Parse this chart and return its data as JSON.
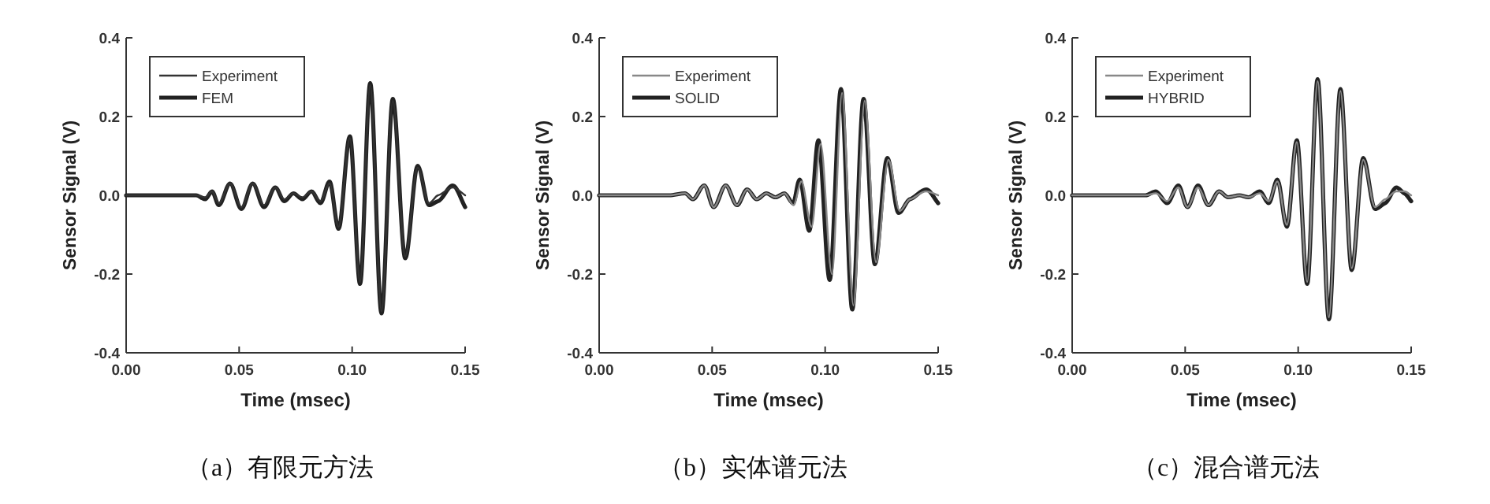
{
  "chart_data": [
    {
      "type": "line",
      "xlabel": "Time (msec)",
      "ylabel": "Sensor Signal (V)",
      "xlim": [
        0,
        0.15
      ],
      "ylim": [
        -0.4,
        0.4
      ],
      "xticks": [
        {
          "value": 0,
          "label": "0.00"
        },
        {
          "value": 0.05,
          "label": "0.05"
        },
        {
          "value": 0.1,
          "label": "0.10"
        },
        {
          "value": 0.15,
          "label": "0.15"
        }
      ],
      "yticks": [
        {
          "value": -0.4,
          "label": "-0.4"
        },
        {
          "value": -0.2,
          "label": "-0.2"
        },
        {
          "value": 0,
          "label": "0.0"
        },
        {
          "value": 0.2,
          "label": "0.2"
        },
        {
          "value": 0.4,
          "label": "0.4"
        }
      ],
      "legend": "top left",
      "annotations": [
        "（a）有限元方法"
      ],
      "series": [
        {
          "name": "Experiment",
          "color": "#333333",
          "x": [
            0,
            0.031,
            0.035,
            0.038,
            0.041,
            0.046,
            0.051,
            0.056,
            0.061,
            0.066,
            0.07,
            0.074,
            0.078,
            0.082,
            0.086,
            0.09,
            0.094,
            0.099,
            0.1035,
            0.108,
            0.113,
            0.118,
            0.1235,
            0.129,
            0.134,
            0.138,
            0.1445,
            0.15
          ],
          "values": [
            0,
            0,
            -0.005,
            0.01,
            -0.02,
            0.03,
            -0.03,
            0.03,
            -0.025,
            0.02,
            -0.01,
            0.005,
            -0.005,
            0.01,
            -0.015,
            0.03,
            -0.08,
            0.145,
            -0.22,
            0.28,
            -0.295,
            0.24,
            -0.155,
            0.07,
            -0.02,
            0.0,
            0.02,
            0.0
          ]
        },
        {
          "name": "FEM",
          "color": "#222222",
          "x": [
            0,
            0.031,
            0.035,
            0.038,
            0.041,
            0.046,
            0.051,
            0.056,
            0.061,
            0.066,
            0.07,
            0.074,
            0.078,
            0.082,
            0.086,
            0.09,
            0.094,
            0.099,
            0.1035,
            0.108,
            0.113,
            0.118,
            0.1235,
            0.129,
            0.134,
            0.138,
            0.1445,
            0.15
          ],
          "values": [
            0,
            0,
            -0.01,
            0.01,
            -0.025,
            0.03,
            -0.035,
            0.03,
            -0.03,
            0.02,
            -0.015,
            0.005,
            -0.01,
            0.01,
            -0.02,
            0.035,
            -0.085,
            0.15,
            -0.225,
            0.285,
            -0.3,
            0.245,
            -0.16,
            0.075,
            -0.025,
            -0.015,
            0.025,
            -0.03
          ]
        }
      ]
    },
    {
      "type": "line",
      "xlabel": "Time (msec)",
      "ylabel": "Sensor Signal (V)",
      "xlim": [
        0,
        0.15
      ],
      "ylim": [
        -0.4,
        0.4
      ],
      "xticks": [
        {
          "value": 0,
          "label": "0.00"
        },
        {
          "value": 0.05,
          "label": "0.05"
        },
        {
          "value": 0.1,
          "label": "0.10"
        },
        {
          "value": 0.15,
          "label": "0.15"
        }
      ],
      "yticks": [
        {
          "value": -0.4,
          "label": "-0.4"
        },
        {
          "value": -0.2,
          "label": "-0.2"
        },
        {
          "value": 0,
          "label": "0.0"
        },
        {
          "value": 0.2,
          "label": "0.2"
        },
        {
          "value": 0.4,
          "label": "0.4"
        }
      ],
      "legend": "top left",
      "annotations": [
        "（b）实体谱元法"
      ],
      "series": [
        {
          "name": "Experiment",
          "color": "#888888",
          "x": [
            0,
            0.031,
            0.038,
            0.0415,
            0.0465,
            0.0507,
            0.056,
            0.061,
            0.0655,
            0.0697,
            0.074,
            0.078,
            0.082,
            0.086,
            0.0895,
            0.094,
            0.098,
            0.103,
            0.1075,
            0.1125,
            0.1175,
            0.1225,
            0.128,
            0.133,
            0.1375,
            0.1447,
            0.15
          ],
          "values": [
            0,
            0,
            0.005,
            -0.01,
            0.025,
            -0.03,
            0.025,
            -0.025,
            0.015,
            -0.01,
            0.005,
            -0.005,
            0.005,
            -0.025,
            0.035,
            -0.08,
            0.13,
            -0.2,
            0.26,
            -0.28,
            0.24,
            -0.17,
            0.09,
            -0.04,
            -0.01,
            0.01,
            0.0
          ]
        },
        {
          "name": "SOLID",
          "color": "#222222",
          "x": [
            0,
            0.031,
            0.038,
            0.0415,
            0.0465,
            0.0507,
            0.056,
            0.061,
            0.0655,
            0.0697,
            0.074,
            0.078,
            0.082,
            0.0858,
            0.0887,
            0.093,
            0.097,
            0.102,
            0.107,
            0.112,
            0.117,
            0.122,
            0.1275,
            0.1325,
            0.1375,
            0.1447,
            0.15
          ],
          "values": [
            0,
            0,
            0.005,
            -0.01,
            0.025,
            -0.03,
            0.025,
            -0.025,
            0.015,
            -0.01,
            0.005,
            -0.005,
            0.005,
            -0.02,
            0.04,
            -0.09,
            0.14,
            -0.215,
            0.27,
            -0.29,
            0.245,
            -0.175,
            0.095,
            -0.045,
            -0.01,
            0.015,
            -0.02
          ]
        }
      ]
    },
    {
      "type": "line",
      "xlabel": "Time (msec)",
      "ylabel": "Sensor Signal (V)",
      "xlim": [
        0,
        0.15
      ],
      "ylim": [
        -0.4,
        0.4
      ],
      "xticks": [
        {
          "value": 0,
          "label": "0.00"
        },
        {
          "value": 0.05,
          "label": "0.05"
        },
        {
          "value": 0.1,
          "label": "0.10"
        },
        {
          "value": 0.15,
          "label": "0.15"
        }
      ],
      "yticks": [
        {
          "value": -0.4,
          "label": "-0.4"
        },
        {
          "value": -0.2,
          "label": "-0.2"
        },
        {
          "value": 0,
          "label": "0.0"
        },
        {
          "value": 0.2,
          "label": "0.2"
        },
        {
          "value": 0.4,
          "label": "0.4"
        }
      ],
      "legend": "top left",
      "annotations": [
        "（c）混合谱元法"
      ],
      "series": [
        {
          "name": "Experiment",
          "color": "#888888",
          "x": [
            0,
            0.0325,
            0.037,
            0.042,
            0.047,
            0.051,
            0.0557,
            0.0603,
            0.065,
            0.069,
            0.074,
            0.078,
            0.083,
            0.087,
            0.0908,
            0.095,
            0.0994,
            0.104,
            0.1086,
            0.1136,
            0.1187,
            0.1237,
            0.1288,
            0.134,
            0.1385,
            0.1435,
            0.147,
            0.15
          ],
          "values": [
            0,
            0,
            0.005,
            -0.015,
            0.02,
            -0.03,
            0.02,
            -0.025,
            0.01,
            -0.005,
            0,
            -0.005,
            0.005,
            -0.015,
            0.035,
            -0.075,
            0.135,
            -0.22,
            0.29,
            -0.31,
            0.265,
            -0.185,
            0.09,
            -0.03,
            -0.01,
            0.01,
            0.01,
            0.0
          ]
        },
        {
          "name": "HYBRID",
          "color": "#222222",
          "x": [
            0,
            0.0325,
            0.037,
            0.042,
            0.047,
            0.051,
            0.0557,
            0.0603,
            0.065,
            0.069,
            0.074,
            0.078,
            0.083,
            0.087,
            0.0908,
            0.095,
            0.0994,
            0.104,
            0.1086,
            0.1136,
            0.1187,
            0.1237,
            0.1288,
            0.134,
            0.1385,
            0.1435,
            0.147,
            0.15
          ],
          "values": [
            0,
            0,
            0.01,
            -0.02,
            0.025,
            -0.03,
            0.025,
            -0.025,
            0.01,
            -0.005,
            0,
            -0.005,
            0.01,
            -0.02,
            0.04,
            -0.08,
            0.14,
            -0.225,
            0.295,
            -0.315,
            0.27,
            -0.19,
            0.095,
            -0.035,
            -0.02,
            0.02,
            0.005,
            -0.015
          ]
        }
      ]
    }
  ]
}
